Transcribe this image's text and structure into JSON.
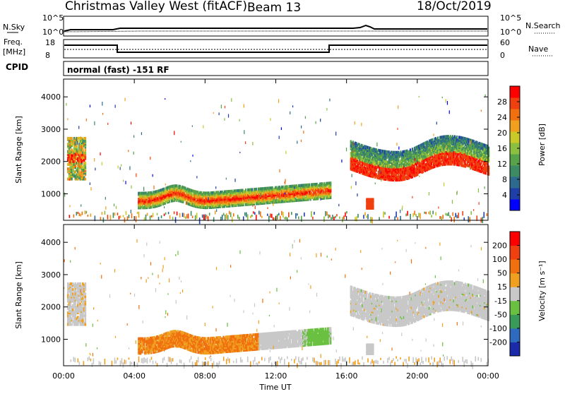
{
  "header": {
    "station": "Christmas Valley West (fitACF)",
    "beam": "Beam 13",
    "date": "18/Oct/2019"
  },
  "top_panels": {
    "nsky_label": "N.Sky",
    "nsearch_label": "N.Search",
    "noise_ticks": [
      "10^5",
      "10^0"
    ],
    "freq_label_line1": "Freq.",
    "freq_label_line2": "[MHz]",
    "freq_ticks": [
      "18",
      "8"
    ],
    "nave_label": "Nave",
    "nave_ticks": [
      "60",
      "0"
    ],
    "cpid_label": "CPID",
    "cpid_text": "normal (fast) -151 RF"
  },
  "chart_data": [
    {
      "type": "heatmap",
      "name": "power",
      "ylabel": "Slant Range [km]",
      "yticks": [
        1000,
        2000,
        3000,
        4000
      ],
      "ylim": [
        180,
        4550
      ],
      "xticks": [
        "00:00",
        "04:00",
        "08:00",
        "12:00",
        "16:00",
        "20:00",
        "00:00"
      ],
      "xlim_hours": [
        0,
        24
      ],
      "colorbar": {
        "label": "Power [dB]",
        "ticks": [
          "28",
          "24",
          "20",
          "16",
          "12",
          "8",
          "4"
        ],
        "colors": [
          "#0000ff",
          "#1f3fa8",
          "#2d6a8e",
          "#3d8b63",
          "#58a24a",
          "#8bbf3f",
          "#c9c928",
          "#f0a01e",
          "#f07010",
          "#f04010",
          "#ff0000"
        ]
      }
    },
    {
      "type": "heatmap",
      "name": "velocity",
      "ylabel": "Slant Range [km]",
      "yticks": [
        1000,
        2000,
        3000,
        4000
      ],
      "ylim": [
        180,
        4550
      ],
      "xticks": [
        "00:00",
        "04:00",
        "08:00",
        "12:00",
        "16:00",
        "20:00",
        "00:00"
      ],
      "xlabel": "Time UT",
      "xlim_hours": [
        0,
        24
      ],
      "colorbar": {
        "label": "Velocity [m s⁻¹]",
        "ticks": [
          "200",
          "100",
          "50",
          "15",
          "-15",
          "-50",
          "-100",
          "-200"
        ],
        "colors": [
          "#1a2aa8",
          "#2d6ac0",
          "#3a9a5a",
          "#6ac040",
          "#c8c8c8",
          "#f0a020",
          "#f07010",
          "#f04010",
          "#ff0000"
        ]
      }
    }
  ]
}
